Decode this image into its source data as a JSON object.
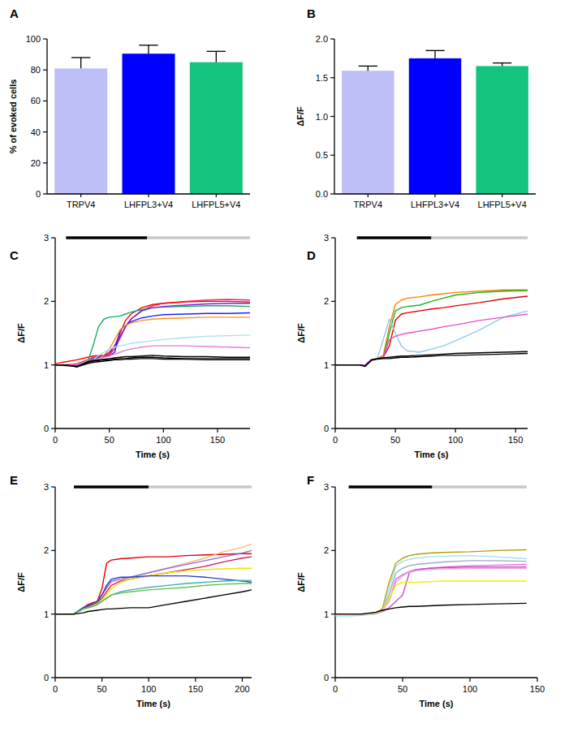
{
  "chart_data": [
    {
      "type": "bar",
      "title": "A",
      "y_label": "% of evoked cells",
      "categories": [
        "TRPV4",
        "LHFPL3+V4",
        "LHFPL5+V4"
      ],
      "values": [
        81,
        90.5,
        85
      ],
      "errors": [
        7,
        5.5,
        7
      ],
      "colors": [
        "#bfbff7",
        "#0000ff",
        "#13c47e"
      ],
      "ylim": [
        0,
        100
      ],
      "yticks": [
        0,
        20,
        40,
        60,
        80,
        100
      ]
    },
    {
      "type": "bar",
      "title": "B",
      "y_label": "ΔF/F",
      "categories": [
        "TRPV4",
        "LHFPL3+V4",
        "LHFPL5+V4"
      ],
      "values": [
        1.59,
        1.75,
        1.65
      ],
      "errors": [
        0.06,
        0.1,
        0.04
      ],
      "colors": [
        "#bfbff7",
        "#0000ff",
        "#13c47e"
      ],
      "ylim": [
        0,
        2
      ],
      "yticks": [
        {
          "value": 0,
          "label": "0.0"
        },
        {
          "value": 0.5,
          "label": "0.5"
        },
        {
          "value": 1,
          "label": "1.0"
        },
        {
          "value": 1.5,
          "label": "1.5"
        },
        {
          "value": 2,
          "label": "2.0"
        }
      ]
    },
    {
      "type": "line",
      "title": "C",
      "x_label": "Time (s)",
      "y_label": "ΔF/F",
      "xlim": [
        0,
        180
      ],
      "xticks": [
        0,
        50,
        100,
        150
      ],
      "ylim": [
        0,
        3
      ],
      "yticks": [
        0,
        1,
        2,
        3
      ],
      "stimulus": [
        {
          "start": 10,
          "end": 85,
          "color": "#000000"
        },
        {
          "start": 85,
          "end": 180,
          "color": "#c8c8c8"
        }
      ],
      "x": [
        0,
        10,
        20,
        30,
        35,
        40,
        45,
        50,
        55,
        60,
        65,
        70,
        80,
        90,
        100,
        120,
        140,
        160,
        180
      ],
      "series": [
        {
          "color": "#e0286e",
          "values": [
            1.0,
            1.0,
            1.02,
            1.08,
            1.12,
            1.13,
            1.14,
            1.16,
            1.25,
            1.42,
            1.6,
            1.72,
            1.86,
            1.93,
            1.97,
            2.0,
            2.02,
            2.03,
            2.02
          ]
        },
        {
          "color": "#ff0000",
          "values": [
            1.02,
            1.05,
            1.08,
            1.12,
            1.14,
            1.15,
            1.15,
            1.17,
            1.3,
            1.5,
            1.7,
            1.8,
            1.9,
            1.95,
            1.97,
            1.99,
            2.0,
            2.0,
            1.99
          ]
        },
        {
          "color": "#10b060",
          "values": [
            1.0,
            1.0,
            0.99,
            1.05,
            1.3,
            1.6,
            1.72,
            1.75,
            1.76,
            1.77,
            1.8,
            1.83,
            1.87,
            1.9,
            1.91,
            1.92,
            1.93,
            1.93,
            1.92
          ]
        },
        {
          "color": "#8020d0",
          "values": [
            1.0,
            1.0,
            1.0,
            1.04,
            1.08,
            1.12,
            1.15,
            1.2,
            1.3,
            1.45,
            1.6,
            1.72,
            1.85,
            1.9,
            1.92,
            1.94,
            1.96,
            1.97,
            1.97
          ]
        },
        {
          "color": "#2020ff",
          "values": [
            1.0,
            1.0,
            1.0,
            1.05,
            1.1,
            1.12,
            1.13,
            1.14,
            1.2,
            1.55,
            1.62,
            1.68,
            1.74,
            1.77,
            1.79,
            1.8,
            1.81,
            1.81,
            1.82
          ]
        },
        {
          "color": "#ff9020",
          "values": [
            1.0,
            1.0,
            1.0,
            1.05,
            1.08,
            1.1,
            1.15,
            1.25,
            1.4,
            1.55,
            1.62,
            1.66,
            1.7,
            1.72,
            1.73,
            1.74,
            1.75,
            1.75,
            1.75
          ]
        },
        {
          "color": "#a8e0f0",
          "values": [
            1.0,
            1.0,
            1.0,
            1.03,
            1.08,
            1.15,
            1.2,
            1.25,
            1.28,
            1.3,
            1.32,
            1.34,
            1.36,
            1.38,
            1.4,
            1.43,
            1.45,
            1.46,
            1.47
          ]
        },
        {
          "color": "#e080d8",
          "values": [
            1.0,
            1.0,
            1.0,
            1.04,
            1.08,
            1.1,
            1.12,
            1.14,
            1.17,
            1.2,
            1.23,
            1.25,
            1.28,
            1.3,
            1.3,
            1.3,
            1.29,
            1.28,
            1.27
          ]
        },
        {
          "color": "#000000",
          "values": [
            1.0,
            1.0,
            0.97,
            1.05,
            1.07,
            1.08,
            1.09,
            1.1,
            1.11,
            1.12,
            1.13,
            1.13,
            1.14,
            1.15,
            1.14,
            1.13,
            1.13,
            1.12,
            1.12
          ]
        },
        {
          "color": "#000000",
          "values": [
            1.0,
            0.99,
            0.98,
            1.04,
            1.06,
            1.07,
            1.08,
            1.08,
            1.09,
            1.1,
            1.1,
            1.11,
            1.12,
            1.12,
            1.11,
            1.1,
            1.1,
            1.1,
            1.1
          ]
        },
        {
          "color": "#000000",
          "values": [
            1.0,
            1.0,
            0.97,
            1.02,
            1.04,
            1.05,
            1.06,
            1.07,
            1.08,
            1.08,
            1.09,
            1.09,
            1.1,
            1.1,
            1.09,
            1.09,
            1.08,
            1.08,
            1.08
          ]
        }
      ]
    },
    {
      "type": "line",
      "title": "D",
      "x_label": "Time (s)",
      "y_label": "ΔF/F",
      "xlim": [
        0,
        160
      ],
      "xticks": [
        0,
        50,
        100,
        150
      ],
      "ylim": [
        0,
        3
      ],
      "yticks": [
        0,
        1,
        2,
        3
      ],
      "stimulus": [
        {
          "start": 18,
          "end": 80,
          "color": "#000000"
        },
        {
          "start": 80,
          "end": 160,
          "color": "#c8c8c8"
        }
      ],
      "x": [
        0,
        10,
        20,
        25,
        30,
        35,
        40,
        45,
        50,
        55,
        60,
        70,
        80,
        90,
        100,
        120,
        140,
        160
      ],
      "series": [
        {
          "color": "#ff8000",
          "values": [
            1.0,
            1.0,
            1.0,
            1.0,
            1.08,
            1.1,
            1.15,
            1.6,
            1.95,
            2.02,
            2.05,
            2.07,
            2.1,
            2.12,
            2.14,
            2.16,
            2.18,
            2.18
          ]
        },
        {
          "color": "#20b020",
          "values": [
            1.0,
            1.0,
            1.0,
            1.0,
            1.08,
            1.1,
            1.12,
            1.5,
            1.85,
            1.9,
            1.92,
            1.94,
            2.0,
            2.05,
            2.1,
            2.14,
            2.16,
            2.17
          ]
        },
        {
          "color": "#e00000",
          "values": [
            1.0,
            1.0,
            1.0,
            1.0,
            1.08,
            1.1,
            1.12,
            1.3,
            1.7,
            1.8,
            1.82,
            1.85,
            1.88,
            1.9,
            1.93,
            1.98,
            2.04,
            2.08
          ]
        },
        {
          "color": "#90c8f0",
          "values": [
            1.0,
            1.0,
            1.0,
            1.0,
            1.08,
            1.1,
            1.4,
            1.72,
            1.5,
            1.3,
            1.22,
            1.2,
            1.25,
            1.3,
            1.38,
            1.55,
            1.75,
            1.85
          ]
        },
        {
          "color": "#e050d0",
          "values": [
            1.0,
            1.0,
            1.0,
            1.0,
            1.08,
            1.1,
            1.12,
            1.4,
            1.45,
            1.48,
            1.5,
            1.53,
            1.56,
            1.6,
            1.63,
            1.7,
            1.75,
            1.8
          ]
        },
        {
          "color": "#000000",
          "values": [
            1.0,
            1.0,
            1.0,
            0.98,
            1.08,
            1.1,
            1.11,
            1.12,
            1.13,
            1.14,
            1.14,
            1.15,
            1.16,
            1.17,
            1.18,
            1.19,
            1.2,
            1.21
          ]
        },
        {
          "color": "#000000",
          "values": [
            1.0,
            1.0,
            1.0,
            0.98,
            1.07,
            1.09,
            1.1,
            1.1,
            1.11,
            1.12,
            1.12,
            1.13,
            1.14,
            1.15,
            1.15,
            1.16,
            1.17,
            1.18
          ]
        }
      ]
    },
    {
      "type": "line",
      "title": "E",
      "x_label": "Time (s)",
      "y_label": "ΔF/F",
      "xlim": [
        0,
        210
      ],
      "xticks": [
        0,
        50,
        100,
        150,
        200
      ],
      "ylim": [
        0,
        3
      ],
      "yticks": [
        0,
        1,
        2,
        3
      ],
      "stimulus": [
        {
          "start": 20,
          "end": 100,
          "color": "#000000"
        },
        {
          "start": 100,
          "end": 210,
          "color": "#c8c8c8"
        }
      ],
      "x": [
        0,
        10,
        20,
        30,
        35,
        40,
        45,
        50,
        55,
        60,
        70,
        80,
        100,
        120,
        140,
        160,
        180,
        200,
        210
      ],
      "series": [
        {
          "color": "#e00000",
          "values": [
            1.0,
            1.0,
            1.0,
            1.1,
            1.15,
            1.18,
            1.2,
            1.4,
            1.8,
            1.85,
            1.87,
            1.88,
            1.9,
            1.9,
            1.92,
            1.93,
            1.94,
            1.95,
            1.95
          ]
        },
        {
          "color": "#ffb870",
          "values": [
            1.0,
            1.0,
            1.0,
            1.1,
            1.13,
            1.16,
            1.2,
            1.3,
            1.4,
            1.5,
            1.55,
            1.58,
            1.65,
            1.72,
            1.8,
            1.88,
            1.98,
            2.05,
            2.1
          ]
        },
        {
          "color": "#9070e0",
          "values": [
            1.0,
            1.0,
            1.0,
            1.1,
            1.13,
            1.16,
            1.2,
            1.3,
            1.42,
            1.52,
            1.55,
            1.58,
            1.65,
            1.72,
            1.78,
            1.84,
            1.9,
            1.96,
            2.0
          ]
        },
        {
          "color": "#d02060",
          "values": [
            1.0,
            1.0,
            1.0,
            1.1,
            1.12,
            1.15,
            1.18,
            1.25,
            1.35,
            1.45,
            1.52,
            1.55,
            1.6,
            1.65,
            1.7,
            1.75,
            1.82,
            1.88,
            1.9
          ]
        },
        {
          "color": "#f0e000",
          "values": [
            1.0,
            1.0,
            1.0,
            1.08,
            1.1,
            1.13,
            1.16,
            1.22,
            1.3,
            1.4,
            1.5,
            1.55,
            1.6,
            1.65,
            1.68,
            1.7,
            1.71,
            1.72,
            1.72
          ]
        },
        {
          "color": "#2040d0",
          "values": [
            1.0,
            1.0,
            1.0,
            1.1,
            1.13,
            1.16,
            1.2,
            1.3,
            1.45,
            1.55,
            1.58,
            1.58,
            1.6,
            1.6,
            1.6,
            1.58,
            1.55,
            1.52,
            1.5
          ]
        },
        {
          "color": "#40b0b0",
          "values": [
            1.0,
            1.0,
            1.0,
            1.08,
            1.1,
            1.12,
            1.15,
            1.2,
            1.25,
            1.3,
            1.35,
            1.38,
            1.42,
            1.45,
            1.48,
            1.5,
            1.52,
            1.53,
            1.53
          ]
        },
        {
          "color": "#60c040",
          "values": [
            1.0,
            1.0,
            1.0,
            1.08,
            1.1,
            1.12,
            1.15,
            1.2,
            1.25,
            1.3,
            1.33,
            1.35,
            1.38,
            1.4,
            1.42,
            1.45,
            1.47,
            1.48,
            1.48
          ]
        },
        {
          "color": "#000000",
          "values": [
            1.0,
            1.0,
            1.0,
            1.02,
            1.04,
            1.05,
            1.06,
            1.07,
            1.08,
            1.08,
            1.09,
            1.1,
            1.1,
            1.15,
            1.2,
            1.25,
            1.3,
            1.35,
            1.38
          ]
        }
      ]
    },
    {
      "type": "line",
      "title": "F",
      "x_label": "Time (s)",
      "y_label": "ΔF/F",
      "xlim": [
        0,
        150
      ],
      "xticks": [
        0,
        50,
        100,
        150
      ],
      "ylim": [
        0,
        3
      ],
      "yticks": [
        0,
        1,
        2,
        3
      ],
      "stimulus": [
        {
          "start": 10,
          "end": 72,
          "color": "#000000"
        },
        {
          "start": 72,
          "end": 142,
          "color": "#c8c8c8"
        }
      ],
      "x": [
        0,
        10,
        20,
        30,
        35,
        40,
        45,
        50,
        55,
        60,
        70,
        80,
        100,
        120,
        142
      ],
      "series": [
        {
          "color": "#b0a000",
          "values": [
            1.0,
            1.0,
            1.0,
            1.02,
            1.08,
            1.5,
            1.8,
            1.88,
            1.92,
            1.94,
            1.96,
            1.97,
            1.98,
            2.0,
            2.01
          ]
        },
        {
          "color": "#a0e0f0",
          "values": [
            0.97,
            0.97,
            0.98,
            1.0,
            1.05,
            1.4,
            1.75,
            1.83,
            1.86,
            1.88,
            1.9,
            1.91,
            1.92,
            1.9,
            1.87
          ]
        },
        {
          "color": "#a0a8c8",
          "values": [
            1.0,
            1.0,
            1.0,
            1.02,
            1.06,
            1.3,
            1.65,
            1.72,
            1.76,
            1.78,
            1.8,
            1.82,
            1.84,
            1.84,
            1.83
          ]
        },
        {
          "color": "#e070e0",
          "values": [
            1.0,
            1.0,
            1.0,
            1.02,
            1.06,
            1.2,
            1.55,
            1.62,
            1.67,
            1.7,
            1.72,
            1.74,
            1.76,
            1.77,
            1.78
          ]
        },
        {
          "color": "#c050c0",
          "values": [
            1.0,
            1.0,
            1.0,
            1.01,
            1.04,
            1.1,
            1.2,
            1.3,
            1.65,
            1.7,
            1.72,
            1.73,
            1.74,
            1.74,
            1.74
          ]
        },
        {
          "color": "#f0a0e0",
          "values": [
            1.0,
            1.0,
            1.0,
            1.02,
            1.05,
            1.2,
            1.5,
            1.6,
            1.66,
            1.68,
            1.7,
            1.71,
            1.72,
            1.72,
            1.72
          ]
        },
        {
          "color": "#f0f000",
          "values": [
            1.0,
            1.0,
            1.0,
            1.02,
            1.05,
            1.25,
            1.45,
            1.5,
            1.5,
            1.5,
            1.51,
            1.52,
            1.52,
            1.52,
            1.52
          ]
        },
        {
          "color": "#000000",
          "values": [
            1.0,
            1.0,
            1.0,
            1.03,
            1.06,
            1.08,
            1.1,
            1.11,
            1.12,
            1.12,
            1.13,
            1.14,
            1.15,
            1.16,
            1.17
          ]
        }
      ]
    }
  ]
}
